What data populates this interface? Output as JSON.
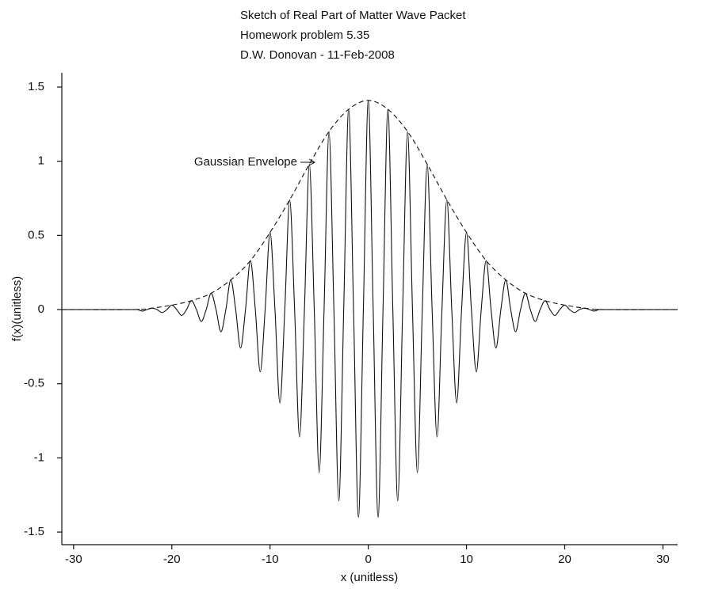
{
  "chart_data": {
    "type": "line",
    "title": [
      "Sketch of Real Part of Matter Wave Packet",
      "Homework problem 5.35",
      "D.W. Donovan - 11-Feb-2008"
    ],
    "xlabel": "x (unitless)",
    "ylabel": "f(x)(unitless)",
    "xlim": [
      -31.2,
      31.5
    ],
    "ylim": [
      -1.585,
      1.596
    ],
    "xticks": [
      -30,
      -20,
      -10,
      0,
      10,
      20,
      30
    ],
    "yticks": [
      -1.5,
      -1,
      -0.5,
      0,
      0.5,
      1,
      1.5
    ],
    "grid": false,
    "series": [
      {
        "color": "#111111",
        "line_style": "solid",
        "x": [
          -31.2,
          -24,
          -23.5,
          -23,
          -22.5,
          -22,
          -21.5,
          -21,
          -20.5,
          -20,
          -19.5,
          -19,
          -18.5,
          -18,
          -17.5,
          -17,
          -16.5,
          -16,
          -15.5,
          -15,
          -14.5,
          -14,
          -13.5,
          -13,
          -12.5,
          -12,
          -11.5,
          -11,
          -10.5,
          -10,
          -9.5,
          -9,
          -8.5,
          -8,
          -7.5,
          -7,
          -6.5,
          -6,
          -5.5,
          -5,
          -4.5,
          -4,
          -3.5,
          -3,
          -2.5,
          -2,
          -1.5,
          -1,
          -0.5,
          0,
          0.5,
          1,
          1.5,
          2,
          2.5,
          3,
          3.5,
          4,
          4.5,
          5,
          5.5,
          6,
          6.5,
          7,
          7.5,
          8,
          8.5,
          9,
          9.5,
          10,
          10.5,
          11,
          11.5,
          12,
          12.5,
          13,
          13.5,
          14,
          14.5,
          15,
          15.5,
          16,
          16.5,
          17,
          17.5,
          18,
          18.5,
          19,
          19.5,
          20,
          20.5,
          21,
          21.5,
          22,
          22.5,
          23,
          23.5,
          24,
          31.5
        ],
        "values": [
          0,
          0,
          0,
          -0.01,
          0,
          0.01,
          0,
          -0.02,
          0,
          0.03,
          0,
          -0.04,
          0,
          0.06,
          0,
          -0.08,
          0,
          0.11,
          0,
          -0.15,
          0,
          0.2,
          0,
          -0.26,
          0,
          0.33,
          0,
          -0.42,
          0,
          0.52,
          0,
          -0.63,
          0,
          0.74,
          0,
          -0.86,
          0,
          0.98,
          0,
          -1.1,
          0,
          1.2,
          0,
          -1.29,
          0,
          1.35,
          0,
          -1.4,
          0,
          1.41,
          0,
          -1.4,
          0,
          1.35,
          0,
          -1.29,
          0,
          1.2,
          0,
          -1.1,
          0,
          0.98,
          0,
          -0.86,
          0,
          0.74,
          0,
          -0.63,
          0,
          0.52,
          0,
          -0.42,
          0,
          0.33,
          0,
          -0.26,
          0,
          0.2,
          0,
          -0.15,
          0,
          0.11,
          0,
          -0.08,
          0,
          0.06,
          0,
          -0.04,
          0,
          0.03,
          0,
          -0.02,
          0,
          0.01,
          0,
          -0.01,
          0,
          0,
          0
        ]
      },
      {
        "color": "#111111",
        "line_style": "dashed",
        "x": [
          -31.2,
          -24,
          -22,
          -20,
          -18,
          -16,
          -14,
          -12,
          -10,
          -8,
          -6,
          -4,
          -2,
          0,
          2,
          4,
          6,
          8,
          10,
          12,
          14,
          16,
          18,
          20,
          22,
          24,
          31.5
        ],
        "values": [
          0,
          0,
          0.01,
          0.03,
          0.06,
          0.11,
          0.2,
          0.33,
          0.52,
          0.74,
          0.98,
          1.2,
          1.35,
          1.41,
          1.35,
          1.2,
          0.98,
          0.74,
          0.52,
          0.33,
          0.2,
          0.11,
          0.06,
          0.03,
          0.01,
          0,
          0
        ]
      }
    ],
    "annotations": [
      {
        "text": "Gaussian Envelope"
      }
    ]
  }
}
